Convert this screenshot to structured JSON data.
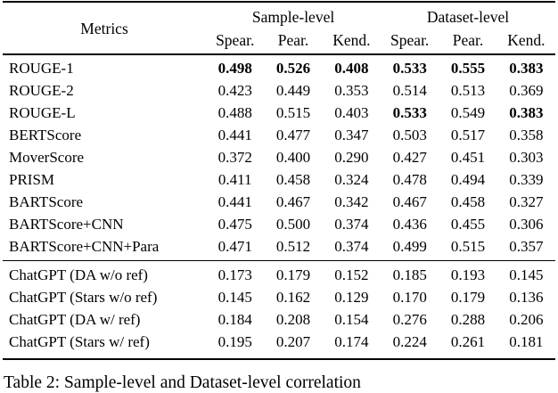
{
  "table": {
    "metrics_header": "Metrics",
    "groups": [
      {
        "label": "Sample-level",
        "subs": [
          "Spear.",
          "Pear.",
          "Kend."
        ]
      },
      {
        "label": "Dataset-level",
        "subs": [
          "Spear.",
          "Pear.",
          "Kend."
        ]
      }
    ],
    "sections": [
      {
        "rows": [
          {
            "metric": "ROUGE-1",
            "values": [
              "0.498",
              "0.526",
              "0.408",
              "0.533",
              "0.555",
              "0.383"
            ],
            "bold": [
              true,
              true,
              true,
              true,
              true,
              true
            ]
          },
          {
            "metric": "ROUGE-2",
            "values": [
              "0.423",
              "0.449",
              "0.353",
              "0.514",
              "0.513",
              "0.369"
            ],
            "bold": [
              false,
              false,
              false,
              false,
              false,
              false
            ]
          },
          {
            "metric": "ROUGE-L",
            "values": [
              "0.488",
              "0.515",
              "0.403",
              "0.533",
              "0.549",
              "0.383"
            ],
            "bold": [
              false,
              false,
              false,
              true,
              false,
              true
            ]
          },
          {
            "metric": "BERTScore",
            "values": [
              "0.441",
              "0.477",
              "0.347",
              "0.503",
              "0.517",
              "0.358"
            ],
            "bold": [
              false,
              false,
              false,
              false,
              false,
              false
            ]
          },
          {
            "metric": "MoverScore",
            "values": [
              "0.372",
              "0.400",
              "0.290",
              "0.427",
              "0.451",
              "0.303"
            ],
            "bold": [
              false,
              false,
              false,
              false,
              false,
              false
            ]
          },
          {
            "metric": "PRISM",
            "values": [
              "0.411",
              "0.458",
              "0.324",
              "0.478",
              "0.494",
              "0.339"
            ],
            "bold": [
              false,
              false,
              false,
              false,
              false,
              false
            ]
          },
          {
            "metric": "BARTScore",
            "values": [
              "0.441",
              "0.467",
              "0.342",
              "0.467",
              "0.458",
              "0.327"
            ],
            "bold": [
              false,
              false,
              false,
              false,
              false,
              false
            ]
          },
          {
            "metric": "BARTScore+CNN",
            "values": [
              "0.475",
              "0.500",
              "0.374",
              "0.436",
              "0.455",
              "0.306"
            ],
            "bold": [
              false,
              false,
              false,
              false,
              false,
              false
            ]
          },
          {
            "metric": "BARTScore+CNN+Para",
            "values": [
              "0.471",
              "0.512",
              "0.374",
              "0.499",
              "0.515",
              "0.357"
            ],
            "bold": [
              false,
              false,
              false,
              false,
              false,
              false
            ]
          }
        ]
      },
      {
        "rows": [
          {
            "metric": "ChatGPT (DA w/o ref)",
            "values": [
              "0.173",
              "0.179",
              "0.152",
              "0.185",
              "0.193",
              "0.145"
            ],
            "bold": [
              false,
              false,
              false,
              false,
              false,
              false
            ]
          },
          {
            "metric": "ChatGPT (Stars w/o ref)",
            "values": [
              "0.145",
              "0.162",
              "0.129",
              "0.170",
              "0.179",
              "0.136"
            ],
            "bold": [
              false,
              false,
              false,
              false,
              false,
              false
            ]
          },
          {
            "metric": "ChatGPT (DA w/ ref)",
            "values": [
              "0.184",
              "0.208",
              "0.154",
              "0.276",
              "0.288",
              "0.206"
            ],
            "bold": [
              false,
              false,
              false,
              false,
              false,
              false
            ]
          },
          {
            "metric": "ChatGPT (Stars w/ ref)",
            "values": [
              "0.195",
              "0.207",
              "0.174",
              "0.224",
              "0.261",
              "0.181"
            ],
            "bold": [
              false,
              false,
              false,
              false,
              false,
              false
            ]
          }
        ]
      }
    ]
  },
  "caption": {
    "text": "Table 2:  Sample-level and Dataset-level correlation"
  }
}
